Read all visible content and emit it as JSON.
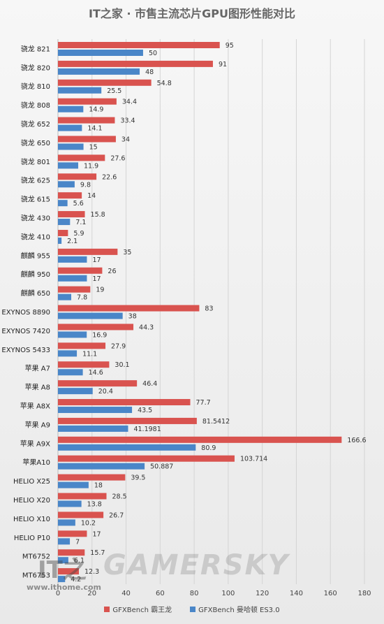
{
  "chart_data": {
    "type": "bar",
    "title": "IT之家 · 市售主流芯片GPU图形性能对比",
    "orientation": "horizontal",
    "categories": [
      "骁龙 821",
      "骁龙 820",
      "骁龙 810",
      "骁龙 808",
      "骁龙 652",
      "骁龙 650",
      "骁龙 801",
      "骁龙 625",
      "骁龙 615",
      "骁龙 430",
      "骁龙 410",
      "麒麟 955",
      "麒麟 950",
      "麒麟 650",
      "EXYNOS 8890",
      "EXYNOS 7420",
      "EXYNOS 5433",
      "苹果 A7",
      "苹果 A8",
      "苹果 A8X",
      "苹果 A9",
      "苹果 A9X",
      "苹果A10",
      "HELIO X25",
      "HELIO X20",
      "HELIO X10",
      "HELIO P10",
      "MT6752",
      "MT6753"
    ],
    "series": [
      {
        "name": "GFXBench 霸王龙",
        "color": "#d9534f",
        "values": [
          95,
          91,
          54.8,
          34.4,
          33.4,
          34,
          27.6,
          22.6,
          14,
          15.8,
          5.9,
          35,
          26,
          19,
          83,
          44.3,
          27.9,
          30.1,
          46.4,
          77.7,
          81.5412,
          166.6,
          103.714,
          39.5,
          28.5,
          26.7,
          17,
          15.7,
          12.3
        ],
        "labels": [
          "95",
          "91",
          "54.8",
          "34.4",
          "33.4",
          "34",
          "27.6",
          "22.6",
          "14",
          "15.8",
          "5.9",
          "35",
          "26",
          "19",
          "83",
          "44.3",
          "27.9",
          "30.1",
          "46.4",
          "77.7",
          "81.5412",
          "166.6",
          "103.714",
          "39.5",
          "28.5",
          "26.7",
          "17",
          "15.7",
          "12.3"
        ]
      },
      {
        "name": "GFXBench 曼哈顿 ES3.0",
        "color": "#4a86c8",
        "values": [
          50,
          48,
          25.5,
          14.9,
          14.1,
          15,
          11.9,
          9.8,
          5.6,
          7.1,
          2.1,
          17,
          17,
          7.8,
          38,
          16.9,
          11.1,
          14.6,
          20.4,
          43.5,
          41.1981,
          80.9,
          50.887,
          18,
          13.8,
          10.2,
          7,
          6.1,
          4.2
        ],
        "labels": [
          "50",
          "48",
          "25.5",
          "14.9",
          "14.1",
          "15",
          "11.9",
          "9.8",
          "5.6",
          "7.1",
          "2.1",
          "17",
          "17",
          "7.8",
          "38",
          "16.9",
          "11.1",
          "14.6",
          "20.4",
          "43.5",
          "41.1981",
          "80.9",
          "50.887",
          "18",
          "13.8",
          "10.2",
          "7",
          "6.1",
          "4.2"
        ]
      }
    ],
    "xlim": [
      0,
      180
    ],
    "xticks": [
      "0",
      "20",
      "40",
      "60",
      "80",
      "100",
      "120",
      "140",
      "160",
      "180"
    ],
    "grid": true,
    "legend_position": "bottom"
  },
  "watermark": {
    "logo": "IT之",
    "text": "GAMERSKY",
    "site": "www.ithome.com"
  }
}
